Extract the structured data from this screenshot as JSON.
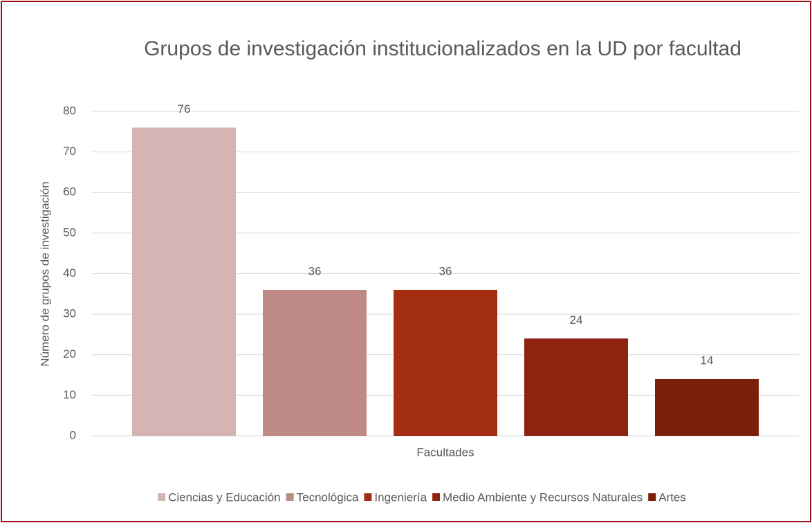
{
  "chart_data": {
    "type": "bar",
    "title": "Grupos de investigación institucionalizados en la UD por facultad",
    "ylabel": "Número de grupos de investigación",
    "categories": [
      "Facultades"
    ],
    "series": [
      {
        "name": "Ciencias y Educación",
        "color": "#d4b5b3",
        "values": [
          76
        ]
      },
      {
        "name": "Tecnológica",
        "color": "#bf8a85",
        "values": [
          36
        ]
      },
      {
        "name": "Ingeniería",
        "color": "#a32e12",
        "values": [
          36
        ]
      },
      {
        "name": "Medio Ambiente y Recursos Naturales",
        "color": "#8e2410",
        "values": [
          24
        ]
      },
      {
        "name": "Artes",
        "color": "#7a200a",
        "values": [
          14
        ]
      }
    ],
    "ylim": [
      0,
      80
    ],
    "yticks": [
      0,
      10,
      20,
      30,
      40,
      50,
      60,
      70,
      80
    ],
    "grid": true,
    "legend": "bottom"
  }
}
